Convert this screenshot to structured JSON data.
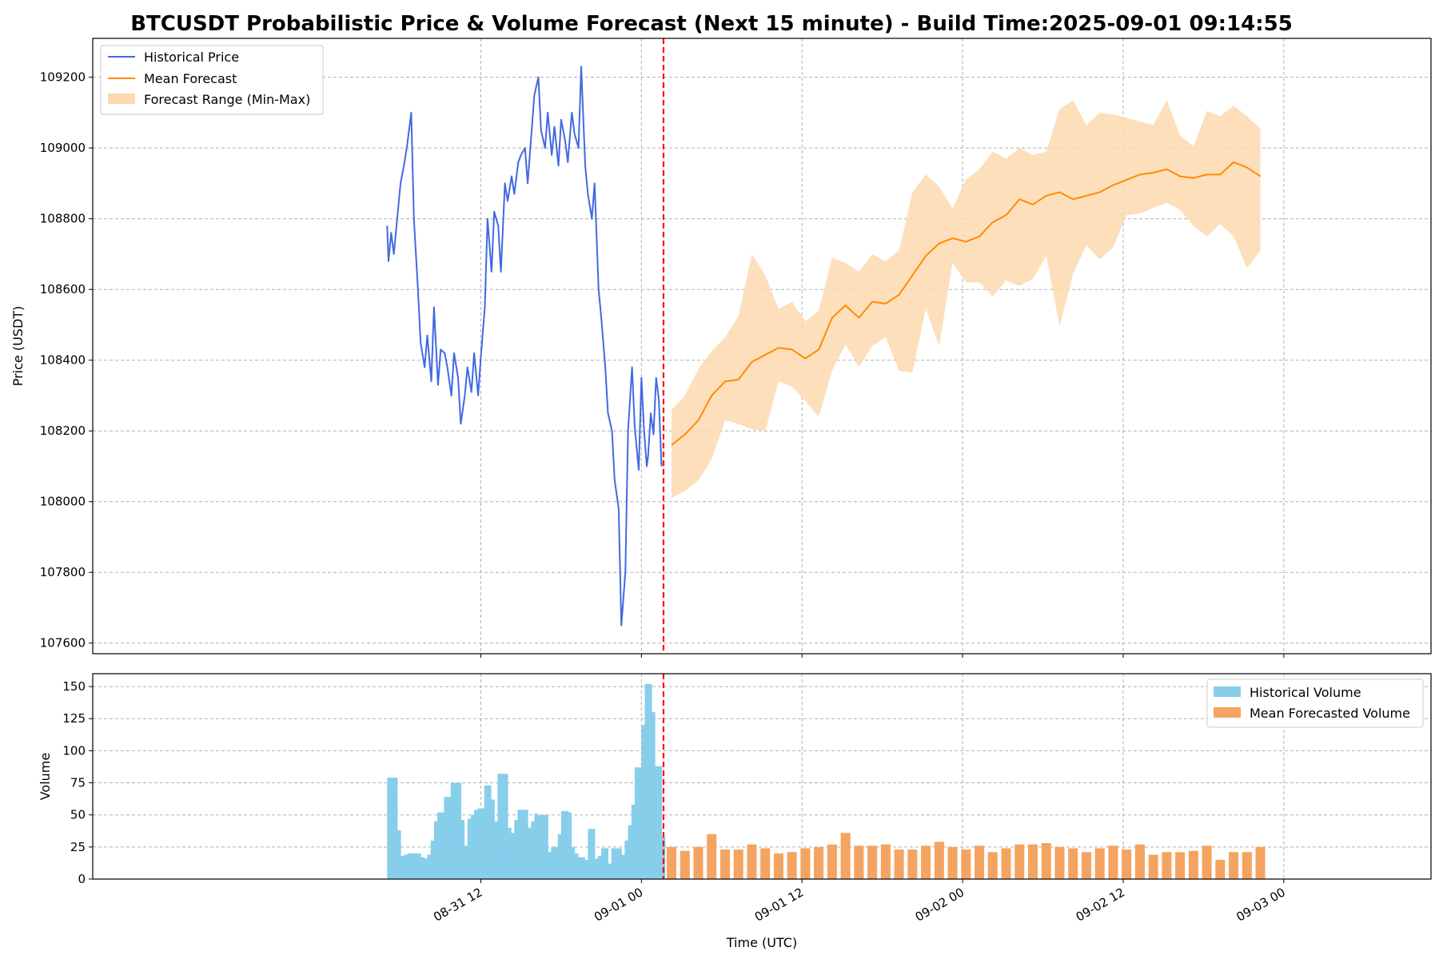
{
  "chart_data": [
    {
      "type": "line",
      "title": "BTCUSDT Probabilistic Price & Volume Forecast (Next 15 minute) - Build Time:2025-09-01 09:14:55",
      "ylabel": "Price (USDT)",
      "ylim": [
        107570,
        109310
      ],
      "y_ticks": [
        "107600",
        "107800",
        "108000",
        "108200",
        "108400",
        "108600",
        "108800",
        "109000",
        "109200"
      ],
      "x_unit": "hours since 08-31 00:00 UTC",
      "xlim": [
        -17,
        83
      ],
      "x_ticks": [
        {
          "x": 12,
          "label": "08-31 12"
        },
        {
          "x": 24,
          "label": "09-01 00"
        },
        {
          "x": 36,
          "label": "09-01 12"
        },
        {
          "x": 48,
          "label": "09-02 00"
        },
        {
          "x": 60,
          "label": "09-02 12"
        },
        {
          "x": 72,
          "label": "09-03 00"
        }
      ],
      "forecast_start": 25.65,
      "forecast_start_color": "#ff0000",
      "legend_position": "upper-left",
      "legend": [
        "Historical Price",
        "Mean Forecast",
        "Forecast Range (Min-Max)"
      ],
      "colors": {
        "historical": "#4169e1",
        "mean": "#ff8c00",
        "range": "#fdd9b0"
      },
      "series": [
        {
          "name": "Historical Price",
          "x": [
            5,
            5.1,
            5.3,
            5.5,
            5.8,
            6,
            6.3,
            6.5,
            6.8,
            7,
            7.3,
            7.5,
            7.8,
            8.0,
            8.3,
            8.5,
            8.8,
            9,
            9.3,
            9.5,
            9.8,
            10,
            10.3,
            10.5,
            10.8,
            11,
            11.3,
            11.5,
            11.8,
            12,
            12.3,
            12.5,
            12.8,
            13,
            13.3,
            13.5,
            13.8,
            14,
            14.3,
            14.5,
            14.8,
            15,
            15.3,
            15.5,
            15.8,
            16,
            16.3,
            16.5,
            16.8,
            17,
            17.3,
            17.5,
            17.8,
            18,
            18.3,
            18.5,
            18.8,
            19,
            19.3,
            19.5,
            19.8,
            20,
            20.3,
            20.5,
            20.8,
            21,
            21.3,
            21.5,
            21.8,
            22,
            22.3,
            22.5,
            22.8,
            23,
            23.3,
            23.5,
            23.8,
            24,
            24.2,
            24.4,
            24.5,
            24.7,
            24.9,
            25.1,
            25.3,
            25.5
          ],
          "values": [
            108780,
            108680,
            108760,
            108700,
            108820,
            108900,
            108960,
            109010,
            109100,
            108800,
            108600,
            108450,
            108380,
            108470,
            108340,
            108550,
            108330,
            108430,
            108420,
            108380,
            108300,
            108420,
            108350,
            108220,
            108300,
            108380,
            108310,
            108420,
            108300,
            108410,
            108550,
            108800,
            108650,
            108820,
            108780,
            108650,
            108900,
            108850,
            108920,
            108870,
            108960,
            108980,
            109000,
            108900,
            109050,
            109150,
            109200,
            109050,
            109000,
            109100,
            108980,
            109060,
            108950,
            109080,
            109020,
            108960,
            109100,
            109040,
            109000,
            109230,
            108950,
            108870,
            108800,
            108900,
            108600,
            108520,
            108380,
            108250,
            108200,
            108060,
            107980,
            107650,
            107800,
            108200,
            108380,
            108210,
            108090,
            108350,
            108200,
            108100,
            108130,
            108250,
            108190,
            108350,
            108290,
            108100
          ]
        },
        {
          "name": "Mean Forecast",
          "x": [
            26.25,
            27.25,
            28.25,
            29.25,
            30.25,
            31.25,
            32.25,
            33.25,
            34.25,
            35.25,
            36.25,
            37.25,
            38.25,
            39.25,
            40.25,
            41.25,
            42.25,
            43.25,
            44.25,
            45.25,
            46.25,
            47.25,
            48.25,
            49.25,
            50.25,
            51.25,
            52.25,
            53.25,
            54.25,
            55.25,
            56.25,
            57.25,
            58.25,
            59.25,
            60.25,
            61.25,
            62.25,
            63.25,
            64.25,
            65.25,
            66.25,
            67.25,
            68.25,
            69.25,
            70.25
          ],
          "values": [
            108160,
            108190,
            108230,
            108300,
            108340,
            108345,
            108395,
            108415,
            108435,
            108430,
            108405,
            108430,
            108520,
            108555,
            108520,
            108565,
            108560,
            108585,
            108640,
            108695,
            108730,
            108745,
            108735,
            108750,
            108790,
            108810,
            108855,
            108840,
            108865,
            108875,
            108855,
            108865,
            108875,
            108895,
            108910,
            108925,
            108930,
            108940,
            108920,
            108915,
            108925,
            108925,
            108960,
            108945,
            108920
          ],
          "min": [
            108010,
            108030,
            108060,
            108120,
            108230,
            108220,
            108205,
            108200,
            108340,
            108325,
            108285,
            108240,
            108370,
            108445,
            108380,
            108440,
            108465,
            108370,
            108365,
            108545,
            108440,
            108675,
            108620,
            108620,
            108580,
            108625,
            108610,
            108630,
            108695,
            108495,
            108645,
            108725,
            108685,
            108720,
            108810,
            108815,
            108830,
            108845,
            108825,
            108780,
            108750,
            108785,
            108750,
            108660,
            108710
          ],
          "max": [
            108260,
            108300,
            108375,
            108425,
            108465,
            108525,
            108700,
            108640,
            108545,
            108565,
            108510,
            108540,
            108690,
            108675,
            108650,
            108700,
            108680,
            108710,
            108875,
            108925,
            108890,
            108830,
            108910,
            108940,
            108990,
            108970,
            109000,
            108980,
            108990,
            109110,
            109135,
            109065,
            109100,
            109095,
            109085,
            109075,
            109065,
            109135,
            109035,
            109005,
            109105,
            109090,
            109120,
            109090,
            109055
          ]
        }
      ]
    },
    {
      "type": "bar",
      "xlabel": "Time (UTC)",
      "ylabel": "Volume",
      "ylim": [
        0,
        160
      ],
      "y_ticks": [
        "0",
        "25",
        "50",
        "75",
        "100",
        "125",
        "150"
      ],
      "forecast_start": 25.65,
      "legend_position": "upper-right",
      "legend": [
        "Historical Volume",
        "Mean Forecasted Volume"
      ],
      "colors": {
        "historical": "#87ceeb",
        "forecast": "#f4a460"
      },
      "series": [
        {
          "name": "Historical Volume",
          "x": [
            5,
            5.25,
            5.5,
            5.75,
            6,
            6.25,
            6.5,
            6.75,
            7,
            7.25,
            7.5,
            7.75,
            8,
            8.25,
            8.5,
            8.75,
            9,
            9.25,
            9.5,
            9.75,
            10,
            10.25,
            10.5,
            10.75,
            11,
            11.25,
            11.5,
            11.75,
            12,
            12.25,
            12.5,
            12.75,
            13,
            13.25,
            13.5,
            13.75,
            14,
            14.25,
            14.5,
            14.75,
            15,
            15.25,
            15.5,
            15.75,
            16,
            16.25,
            16.5,
            16.75,
            17,
            17.25,
            17.5,
            17.75,
            18,
            18.25,
            18.5,
            18.75,
            19,
            19.25,
            19.5,
            19.75,
            20,
            20.25,
            20.5,
            20.75,
            21,
            21.25,
            21.5,
            21.75,
            22,
            22.25,
            22.5,
            22.75,
            23,
            23.25,
            23.5,
            23.75,
            24,
            24.25,
            24.5,
            24.75,
            25,
            25.25,
            25.5
          ],
          "values": [
            79,
            79,
            79,
            38,
            18,
            19,
            20,
            20,
            20,
            20,
            17,
            16,
            19,
            30,
            45,
            52,
            52,
            64,
            64,
            75,
            75,
            75,
            46,
            26,
            47,
            50,
            54,
            55,
            55,
            73,
            73,
            62,
            45,
            82,
            82,
            82,
            40,
            36,
            46,
            54,
            54,
            54,
            40,
            45,
            51,
            50,
            50,
            50,
            21,
            25,
            25,
            35,
            53,
            53,
            52,
            25,
            20,
            17,
            17,
            15,
            39,
            39,
            16,
            18,
            24,
            24,
            12,
            24,
            24,
            24,
            19,
            30,
            42,
            58,
            87,
            87,
            120,
            152,
            152,
            130,
            88,
            88,
            33
          ]
        },
        {
          "name": "Mean Forecasted Volume",
          "x": [
            26.25,
            27.25,
            28.25,
            29.25,
            30.25,
            31.25,
            32.25,
            33.25,
            34.25,
            35.25,
            36.25,
            37.25,
            38.25,
            39.25,
            40.25,
            41.25,
            42.25,
            43.25,
            44.25,
            45.25,
            46.25,
            47.25,
            48.25,
            49.25,
            50.25,
            51.25,
            52.25,
            53.25,
            54.25,
            55.25,
            56.25,
            57.25,
            58.25,
            59.25,
            60.25,
            61.25,
            62.25,
            63.25,
            64.25,
            65.25,
            66.25,
            67.25,
            68.25,
            69.25,
            70.25
          ],
          "values": [
            25,
            22,
            25,
            35,
            23,
            23,
            27,
            24,
            20,
            21,
            24,
            25,
            27,
            36,
            26,
            26,
            27,
            23,
            23,
            26,
            29,
            25,
            23,
            26,
            21,
            24,
            27,
            27,
            28,
            25,
            24,
            21,
            24,
            26,
            23,
            27,
            19,
            21,
            21,
            22,
            26,
            15,
            21,
            21,
            25
          ]
        }
      ]
    }
  ]
}
